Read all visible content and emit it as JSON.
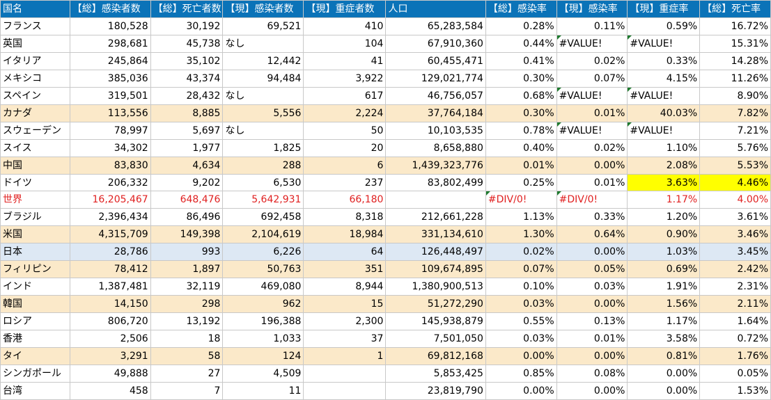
{
  "columns": [
    "国名",
    "【総】感染者数",
    "【総】死亡者数",
    "【現】感染者数",
    "【現】重症者数",
    "人口",
    "【総】感染率",
    "【現】感染率",
    "【現】重症率",
    "【総】死亡率"
  ],
  "rows": [
    {
      "cells": [
        "フランス",
        "180,528",
        "30,192",
        "69,521",
        "410",
        "65,283,584",
        "0.28%",
        "0.11%",
        "0.59%",
        "16.72%"
      ],
      "style": ""
    },
    {
      "cells": [
        "英国",
        "298,681",
        "45,738",
        "なし",
        "104",
        "67,910,360",
        "0.44%",
        "#VALUE!",
        "#VALUE!",
        "15.31%"
      ],
      "style": "",
      "flags": [
        7,
        8
      ]
    },
    {
      "cells": [
        "イタリア",
        "245,864",
        "35,102",
        "12,442",
        "41",
        "60,455,471",
        "0.41%",
        "0.02%",
        "0.33%",
        "14.28%"
      ],
      "style": ""
    },
    {
      "cells": [
        "メキシコ",
        "385,036",
        "43,374",
        "94,484",
        "3,922",
        "129,021,774",
        "0.30%",
        "0.07%",
        "4.15%",
        "11.26%"
      ],
      "style": ""
    },
    {
      "cells": [
        "スペイン",
        "319,501",
        "28,432",
        "なし",
        "617",
        "46,756,057",
        "0.68%",
        "#VALUE!",
        "#VALUE!",
        "8.90%"
      ],
      "style": "",
      "flags": [
        7,
        8
      ]
    },
    {
      "cells": [
        "カナダ",
        "113,556",
        "8,885",
        "5,556",
        "2,224",
        "37,764,184",
        "0.30%",
        "0.01%",
        "40.03%",
        "7.82%"
      ],
      "style": "hl-tan"
    },
    {
      "cells": [
        "スウェーデン",
        "78,997",
        "5,697",
        "なし",
        "50",
        "10,103,535",
        "0.78%",
        "#VALUE!",
        "#VALUE!",
        "7.21%"
      ],
      "style": "",
      "flags": [
        7,
        8
      ]
    },
    {
      "cells": [
        "スイス",
        "34,302",
        "1,977",
        "1,825",
        "20",
        "8,658,880",
        "0.40%",
        "0.02%",
        "1.10%",
        "5.76%"
      ],
      "style": ""
    },
    {
      "cells": [
        "中国",
        "83,830",
        "4,634",
        "288",
        "6",
        "1,439,323,776",
        "0.01%",
        "0.00%",
        "2.08%",
        "5.53%"
      ],
      "style": "hl-tan"
    },
    {
      "cells": [
        "ドイツ",
        "206,332",
        "9,202",
        "6,530",
        "237",
        "83,802,499",
        "0.25%",
        "0.01%",
        "3.63%",
        "4.46%"
      ],
      "style": "",
      "yellow": [
        8,
        9
      ]
    },
    {
      "cells": [
        "世界",
        "16,205,467",
        "648,476",
        "5,642,931",
        "66,180",
        "",
        "#DIV/0!",
        "#DIV/0!",
        "1.17%",
        "4.00%"
      ],
      "style": "red",
      "flags": [
        6,
        7
      ]
    },
    {
      "cells": [
        "ブラジル",
        "2,396,434",
        "86,496",
        "692,458",
        "8,318",
        "212,661,228",
        "1.13%",
        "0.33%",
        "1.20%",
        "3.61%"
      ],
      "style": ""
    },
    {
      "cells": [
        "米国",
        "4,315,709",
        "149,398",
        "2,104,619",
        "18,984",
        "331,134,610",
        "1.30%",
        "0.64%",
        "0.90%",
        "3.46%"
      ],
      "style": "hl-tan"
    },
    {
      "cells": [
        "日本",
        "28,786",
        "993",
        "6,226",
        "64",
        "126,448,497",
        "0.02%",
        "0.00%",
        "1.03%",
        "3.45%"
      ],
      "style": "hl-blue"
    },
    {
      "cells": [
        "フィリピン",
        "78,412",
        "1,897",
        "50,763",
        "351",
        "109,674,895",
        "0.07%",
        "0.05%",
        "0.69%",
        "2.42%"
      ],
      "style": "hl-tan"
    },
    {
      "cells": [
        "インド",
        "1,387,481",
        "32,119",
        "469,080",
        "8,944",
        "1,380,900,513",
        "0.10%",
        "0.03%",
        "1.91%",
        "2.31%"
      ],
      "style": ""
    },
    {
      "cells": [
        "韓国",
        "14,150",
        "298",
        "962",
        "15",
        "51,272,290",
        "0.03%",
        "0.00%",
        "1.56%",
        "2.11%"
      ],
      "style": "hl-tan"
    },
    {
      "cells": [
        "ロシア",
        "806,720",
        "13,192",
        "196,388",
        "2,300",
        "145,938,879",
        "0.55%",
        "0.13%",
        "1.17%",
        "1.64%"
      ],
      "style": ""
    },
    {
      "cells": [
        "香港",
        "2,506",
        "18",
        "1,033",
        "37",
        "7,501,050",
        "0.03%",
        "0.01%",
        "3.58%",
        "0.72%"
      ],
      "style": ""
    },
    {
      "cells": [
        "タイ",
        "3,291",
        "58",
        "124",
        "1",
        "69,812,168",
        "0.00%",
        "0.00%",
        "0.81%",
        "1.76%"
      ],
      "style": "hl-tan"
    },
    {
      "cells": [
        "シンガポール",
        "49,888",
        "27",
        "4,509",
        "",
        "5,853,425",
        "0.85%",
        "0.08%",
        "0.00%",
        "0.05%"
      ],
      "style": ""
    },
    {
      "cells": [
        "台湾",
        "458",
        "7",
        "11",
        "",
        "23,819,790",
        "0.00%",
        "0.00%",
        "0.00%",
        "1.53%"
      ],
      "style": ""
    }
  ]
}
